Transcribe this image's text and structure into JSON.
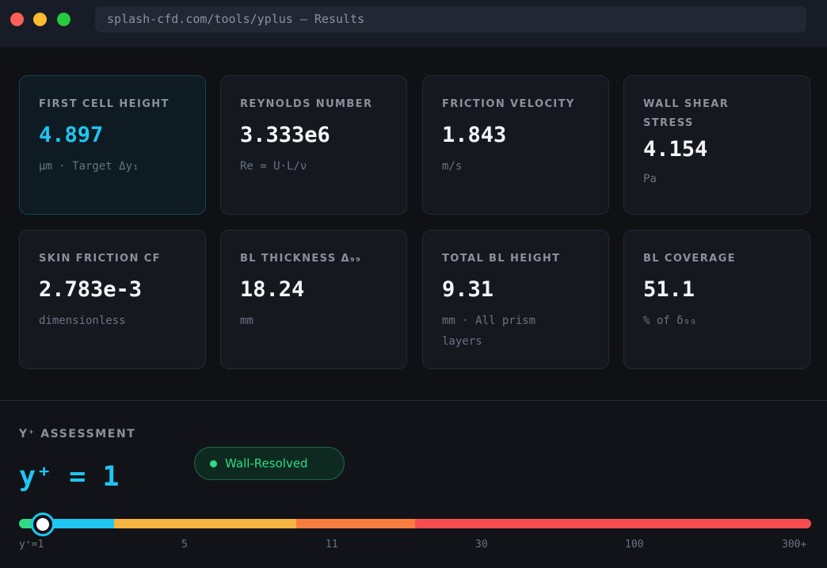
{
  "window": {
    "url": "splash-cfd.com/tools/yplus — Results"
  },
  "cards": [
    {
      "label": "FIRST CELL HEIGHT",
      "value": "4.897",
      "unit": "μm · Target Δy₁"
    },
    {
      "label": "REYNOLDS NUMBER",
      "value": "3.333e6",
      "unit": "Re = U·L/ν"
    },
    {
      "label": "FRICTION VELOCITY",
      "value": "1.843",
      "unit": "m/s"
    },
    {
      "label": "WALL SHEAR STRESS",
      "value": "4.154",
      "unit": "Pa"
    },
    {
      "label": "SKIN FRICTION CF",
      "value": "2.783e-3",
      "unit": "dimensionless"
    },
    {
      "label": "BL THICKNESS Δ₉₉",
      "value": "18.24",
      "unit": "mm"
    },
    {
      "label": "TOTAL BL HEIGHT",
      "value": "9.31",
      "unit": "mm · All prism layers"
    },
    {
      "label": "BL COVERAGE",
      "value": "51.1",
      "unit": "% of δ₉₉"
    }
  ],
  "assessment": {
    "title": "Y⁺ ASSESSMENT",
    "value": "y⁺ = 1",
    "badge": "Wall-Resolved",
    "scale_ticks": [
      "y⁺=1",
      "5",
      "11",
      "30",
      "100",
      "300+"
    ],
    "marker_value": 1
  },
  "colors": {
    "accent": "#1ec6f2",
    "resolved": "#2fdc82",
    "buffer": "#f5b43f",
    "log": "#f87d3f",
    "bad": "#f54d50"
  }
}
